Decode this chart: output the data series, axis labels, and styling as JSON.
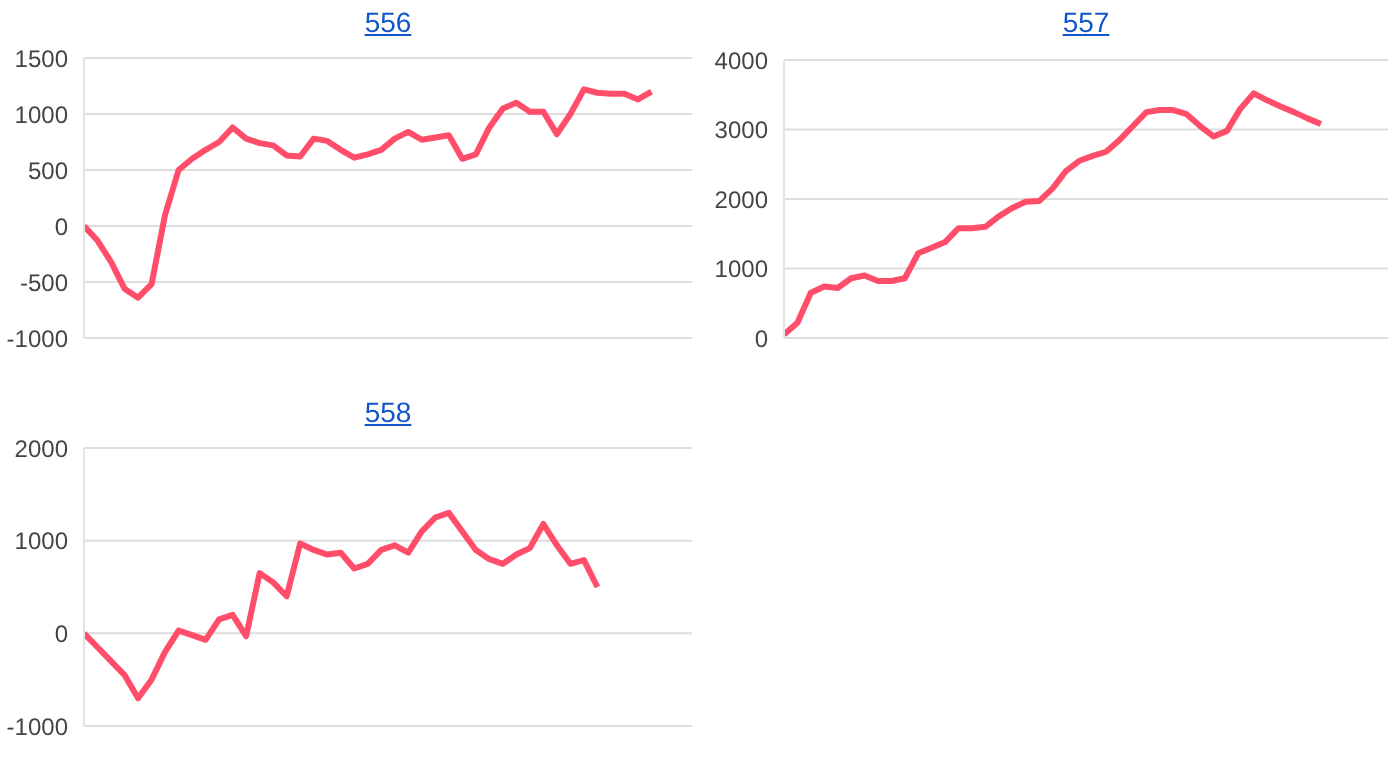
{
  "chart_data": [
    {
      "type": "line",
      "title": "556",
      "categories": [
        null,
        null,
        null,
        null,
        null,
        null,
        null,
        null,
        null,
        null,
        null,
        null,
        null,
        null,
        null,
        null,
        null,
        null,
        null,
        null,
        null,
        null,
        null,
        null,
        null,
        null,
        null,
        null,
        null,
        null,
        null,
        null,
        null,
        null,
        null,
        null,
        null,
        null,
        null,
        null,
        null,
        null,
        null,
        null,
        null,
        null
      ],
      "series": [
        {
          "color": "#ff4d6a",
          "values": [
            0,
            -130,
            -320,
            -560,
            -640,
            -520,
            100,
            500,
            600,
            680,
            750,
            880,
            780,
            740,
            720,
            630,
            620,
            780,
            760,
            680,
            610,
            640,
            680,
            780,
            840,
            770,
            790,
            810,
            600,
            640,
            880,
            1050,
            1100,
            1020,
            1020,
            820,
            1000,
            1220,
            1190,
            1180,
            1180,
            1130,
            1200,
            null,
            null,
            null
          ]
        }
      ],
      "ylim": [
        -1000,
        1500
      ],
      "yticks": [
        -1000,
        -500,
        0,
        500,
        1000,
        1500
      ],
      "grid": "y",
      "tick_labels": "y",
      "marker": "none",
      "line_style": "solid",
      "legend": false
    },
    {
      "type": "line",
      "title": "557",
      "categories": [
        null,
        null,
        null,
        null,
        null,
        null,
        null,
        null,
        null,
        null,
        null,
        null,
        null,
        null,
        null,
        null,
        null,
        null,
        null,
        null,
        null,
        null,
        null,
        null,
        null,
        null,
        null,
        null,
        null,
        null,
        null,
        null,
        null,
        null,
        null,
        null,
        null,
        null,
        null,
        null,
        null,
        null,
        null,
        null,
        null,
        null
      ],
      "series": [
        {
          "color": "#ff4d6a",
          "values": [
            50,
            220,
            650,
            740,
            720,
            860,
            900,
            820,
            820,
            860,
            1220,
            1300,
            1380,
            1580,
            1580,
            1600,
            1750,
            1870,
            1960,
            1970,
            2150,
            2400,
            2550,
            2620,
            2680,
            2850,
            3050,
            3250,
            3280,
            3280,
            3220,
            3050,
            2900,
            2980,
            3300,
            3520,
            3420,
            3330,
            3250,
            3160,
            3080,
            null,
            null,
            null,
            null,
            null
          ]
        }
      ],
      "ylim": [
        0,
        4000
      ],
      "yticks": [
        0,
        1000,
        2000,
        3000,
        4000
      ],
      "grid": "y",
      "tick_labels": "y",
      "marker": "none",
      "line_style": "solid",
      "legend": false
    },
    {
      "type": "line",
      "title": "558",
      "categories": [
        null,
        null,
        null,
        null,
        null,
        null,
        null,
        null,
        null,
        null,
        null,
        null,
        null,
        null,
        null,
        null,
        null,
        null,
        null,
        null,
        null,
        null,
        null,
        null,
        null,
        null,
        null,
        null,
        null,
        null,
        null,
        null,
        null,
        null,
        null,
        null,
        null,
        null,
        null,
        null,
        null,
        null,
        null,
        null,
        null,
        null
      ],
      "series": [
        {
          "color": "#ff4d6a",
          "values": [
            0,
            -150,
            -300,
            -450,
            -700,
            -500,
            -200,
            30,
            -20,
            -70,
            150,
            200,
            -30,
            650,
            550,
            400,
            970,
            900,
            850,
            870,
            700,
            750,
            900,
            950,
            870,
            1100,
            1250,
            1300,
            1100,
            900,
            800,
            750,
            850,
            920,
            1180,
            950,
            750,
            790,
            500,
            null,
            null,
            null,
            null,
            null,
            null,
            null
          ]
        }
      ],
      "ylim": [
        -1000,
        2000
      ],
      "yticks": [
        -1000,
        0,
        1000,
        2000
      ],
      "grid": "y",
      "tick_labels": "y",
      "marker": "none",
      "line_style": "solid",
      "legend": false
    }
  ]
}
